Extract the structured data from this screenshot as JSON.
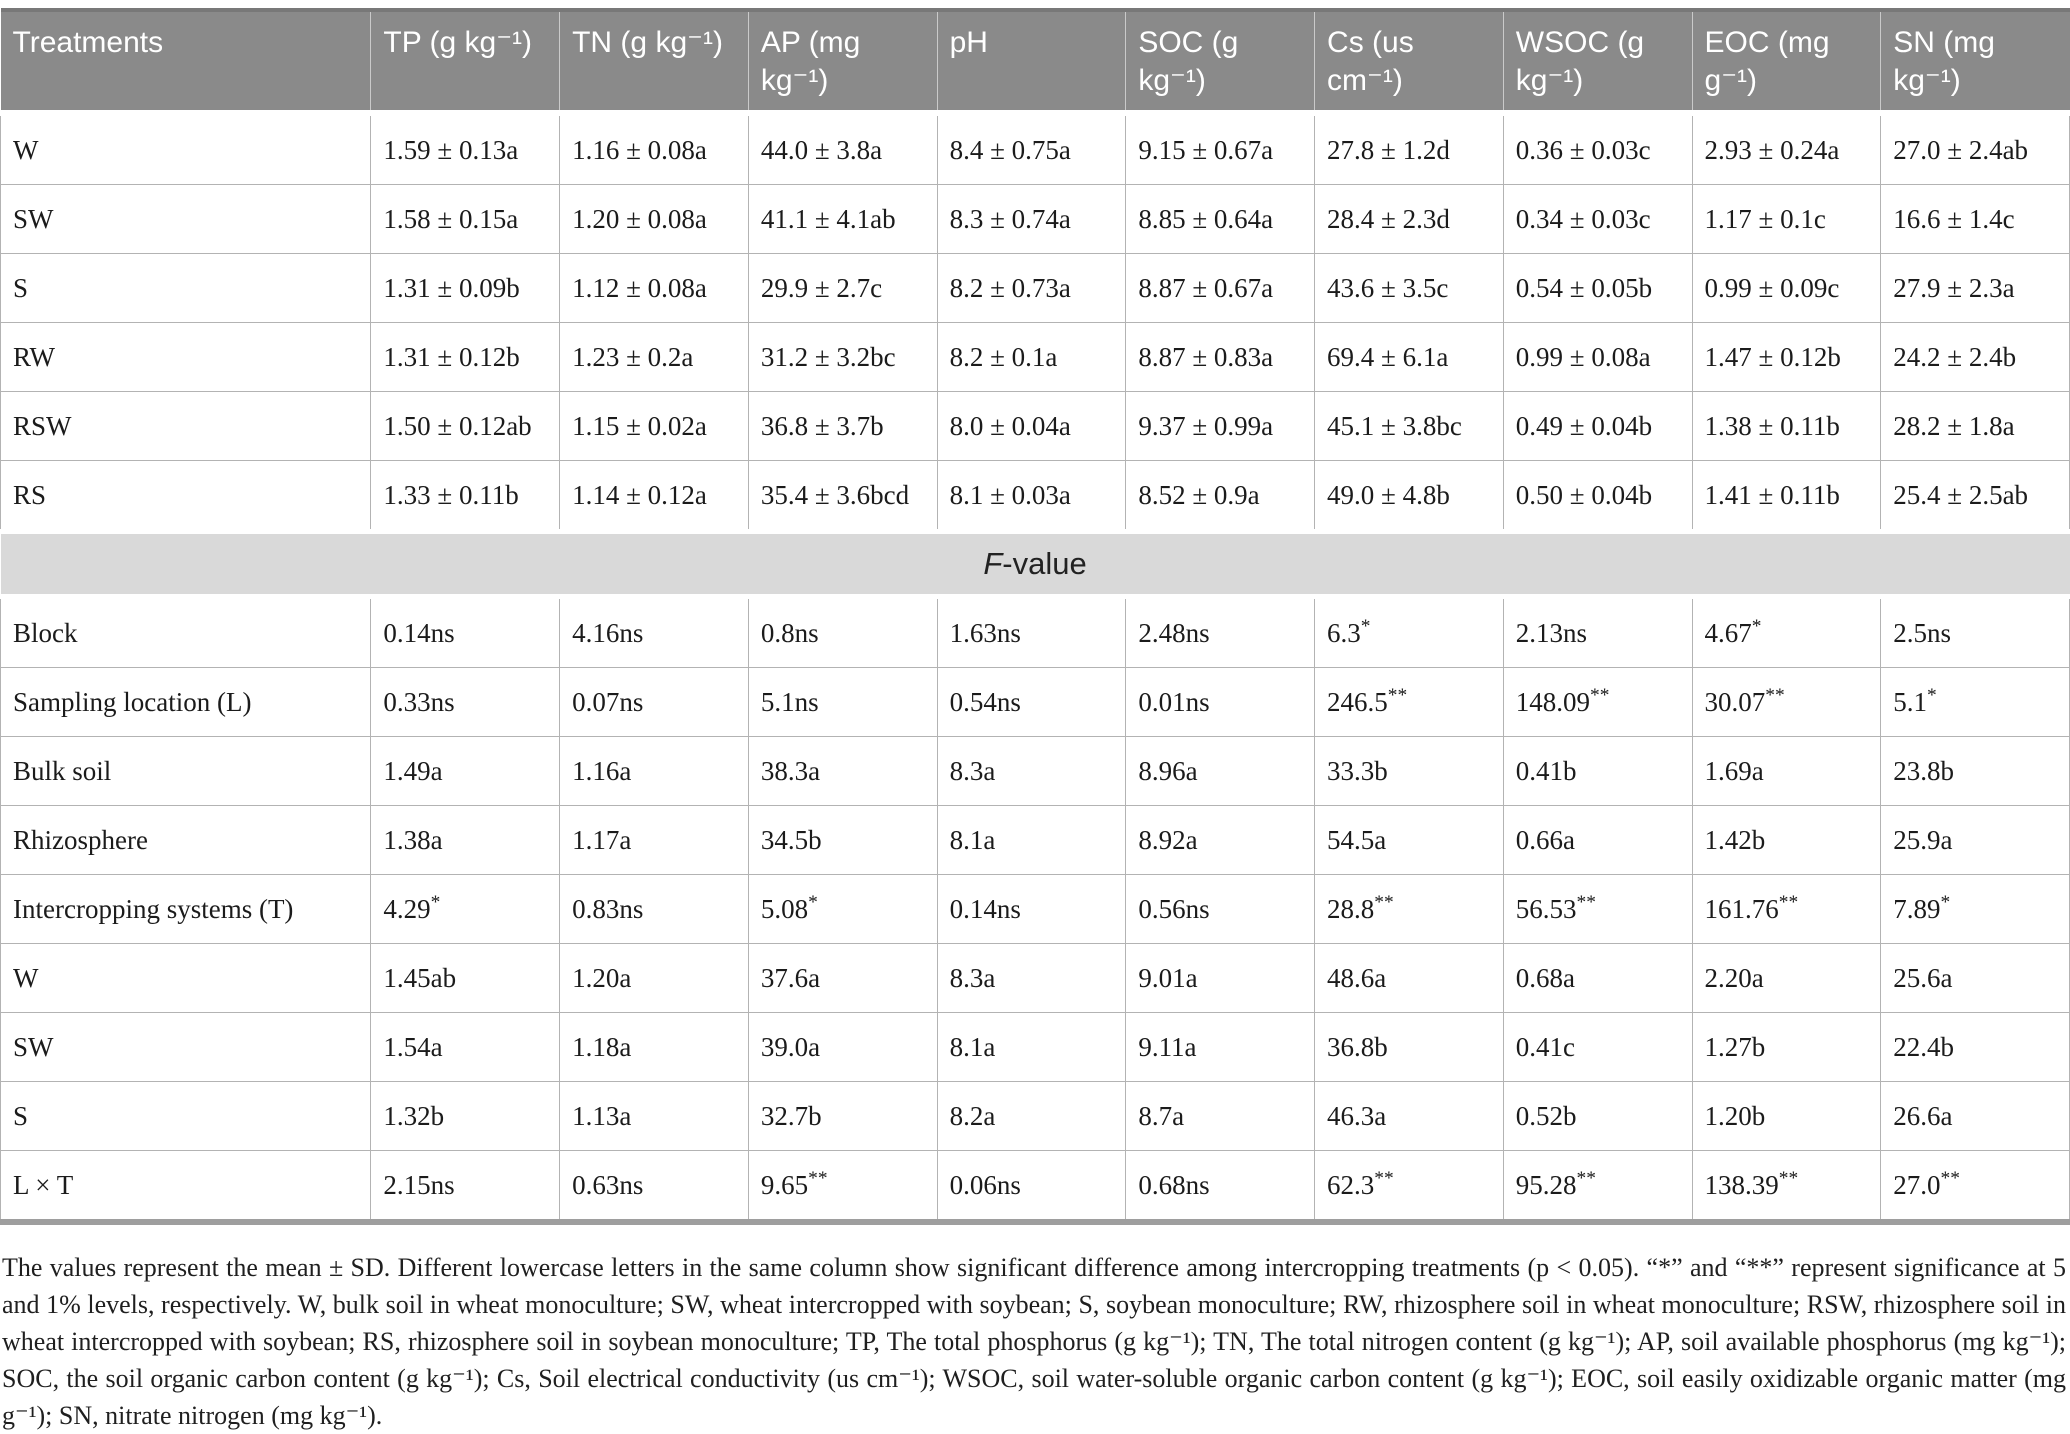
{
  "table": {
    "columns": [
      "Treatments",
      "TP (g kg⁻¹)",
      "TN (g kg⁻¹)",
      "AP (mg kg⁻¹)",
      "pH",
      "SOC (g kg⁻¹)",
      "Cs (us cm⁻¹)",
      "WSOC (g kg⁻¹)",
      "EOC (mg g⁻¹)",
      "SN (mg kg⁻¹)"
    ],
    "treatment_rows": [
      {
        "label": "W",
        "values": [
          "1.59 ± 0.13a",
          "1.16 ± 0.08a",
          "44.0 ± 3.8a",
          "8.4 ± 0.75a",
          "9.15 ± 0.67a",
          "27.8 ± 1.2d",
          "0.36 ± 0.03c",
          "2.93 ± 0.24a",
          "27.0 ± 2.4ab"
        ]
      },
      {
        "label": "SW",
        "values": [
          "1.58 ± 0.15a",
          "1.20 ± 0.08a",
          "41.1 ± 4.1ab",
          "8.3 ± 0.74a",
          "8.85 ± 0.64a",
          "28.4 ± 2.3d",
          "0.34 ± 0.03c",
          "1.17 ± 0.1c",
          "16.6 ± 1.4c"
        ]
      },
      {
        "label": "S",
        "values": [
          "1.31 ± 0.09b",
          "1.12 ± 0.08a",
          "29.9 ± 2.7c",
          "8.2 ± 0.73a",
          "8.87 ± 0.67a",
          "43.6 ± 3.5c",
          "0.54 ± 0.05b",
          "0.99 ± 0.09c",
          "27.9 ± 2.3a"
        ]
      },
      {
        "label": "RW",
        "values": [
          "1.31 ± 0.12b",
          "1.23 ± 0.2a",
          "31.2 ± 3.2bc",
          "8.2 ± 0.1a",
          "8.87 ± 0.83a",
          "69.4 ± 6.1a",
          "0.99 ± 0.08a",
          "1.47 ± 0.12b",
          "24.2 ± 2.4b"
        ]
      },
      {
        "label": "RSW",
        "values": [
          "1.50 ± 0.12ab",
          "1.15 ± 0.02a",
          "36.8 ± 3.7b",
          "8.0 ± 0.04a",
          "9.37 ± 0.99a",
          "45.1 ± 3.8bc",
          "0.49 ± 0.04b",
          "1.38 ± 0.11b",
          "28.2 ± 1.8a"
        ]
      },
      {
        "label": "RS",
        "values": [
          "1.33 ± 0.11b",
          "1.14 ± 0.12a",
          "35.4 ± 3.6bcd",
          "8.1 ± 0.03a",
          "8.52 ± 0.9a",
          "49.0 ± 4.8b",
          "0.50 ± 0.04b",
          "1.41 ± 0.11b",
          "25.4 ± 2.5ab"
        ]
      }
    ],
    "section_label": {
      "italic": "F",
      "rest": "-value"
    },
    "fvalue_rows": [
      {
        "label": "Block",
        "values": [
          "0.14ns",
          "4.16ns",
          "0.8ns",
          "1.63ns",
          "2.48ns",
          "6.3*",
          "2.13ns",
          "4.67*",
          "2.5ns"
        ]
      },
      {
        "label": "Sampling location (L)",
        "values": [
          "0.33ns",
          "0.07ns",
          "5.1ns",
          "0.54ns",
          "0.01ns",
          "246.5**",
          "148.09**",
          "30.07**",
          "5.1*"
        ]
      },
      {
        "label": "Bulk soil",
        "values": [
          "1.49a",
          "1.16a",
          "38.3a",
          "8.3a",
          "8.96a",
          "33.3b",
          "0.41b",
          "1.69a",
          "23.8b"
        ]
      },
      {
        "label": "Rhizosphere",
        "values": [
          "1.38a",
          "1.17a",
          "34.5b",
          "8.1a",
          "8.92a",
          "54.5a",
          "0.66a",
          "1.42b",
          "25.9a"
        ]
      },
      {
        "label": "Intercropping systems (T)",
        "values": [
          "4.29*",
          "0.83ns",
          "5.08*",
          "0.14ns",
          "0.56ns",
          "28.8**",
          "56.53**",
          "161.76**",
          "7.89*"
        ]
      },
      {
        "label": "W",
        "values": [
          "1.45ab",
          "1.20a",
          "37.6a",
          "8.3a",
          "9.01a",
          "48.6a",
          "0.68a",
          "2.20a",
          "25.6a"
        ]
      },
      {
        "label": "SW",
        "values": [
          "1.54a",
          "1.18a",
          "39.0a",
          "8.1a",
          "9.11a",
          "36.8b",
          "0.41c",
          "1.27b",
          "22.4b"
        ]
      },
      {
        "label": "S",
        "values": [
          "1.32b",
          "1.13a",
          "32.7b",
          "8.2a",
          "8.7a",
          "46.3a",
          "0.52b",
          "1.20b",
          "26.6a"
        ]
      },
      {
        "label": "L × T",
        "values": [
          "2.15ns",
          "0.63ns",
          "9.65**",
          "0.06ns",
          "0.68ns",
          "62.3**",
          "95.28**",
          "138.39**",
          "27.0**"
        ]
      }
    ]
  },
  "footnote": "The values represent the mean ± SD. Different lowercase letters in the same column show significant difference among intercropping treatments (p < 0.05). “*” and “**” represent significance at 5 and 1% levels, respectively. W, bulk soil in wheat monoculture; SW, wheat intercropped with soybean; S, soybean monoculture; RW, rhizosphere soil in wheat monoculture; RSW, rhizosphere soil in wheat intercropped with soybean; RS, rhizosphere soil in soybean monoculture; TP, The total phosphorus (g kg⁻¹); TN, The total nitrogen content (g kg⁻¹); AP, soil available phosphorus (mg kg⁻¹); SOC, the soil organic carbon content (g kg⁻¹); Cs, Soil electrical conductivity (us cm⁻¹); WSOC, soil water-soluble organic carbon content (g kg⁻¹); EOC, soil easily oxidizable organic matter (mg g⁻¹); SN, nitrate nitrogen (mg kg⁻¹).",
  "colors": {
    "header_bg": "#8a8a8a",
    "section_band_bg": "#d9d9d9",
    "cell_border": "#b3b3b3",
    "bottom_rule": "#9e9e9e",
    "top_rule": "#787878"
  }
}
